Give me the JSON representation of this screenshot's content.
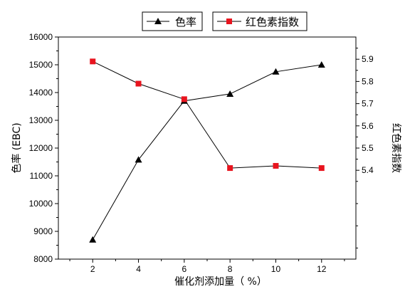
{
  "chart_data": {
    "type": "line",
    "xlabel": "催化剂添加量（ %）",
    "ylabel_left": "色率 (EBC)",
    "ylabel_right": "红色素指数",
    "x": [
      2,
      4,
      6,
      8,
      10,
      12
    ],
    "x_ticks": [
      "2",
      "4",
      "6",
      "8",
      "10",
      "12"
    ],
    "xlim": [
      0.5,
      13.5
    ],
    "ylim_left": [
      8000,
      16000
    ],
    "ylim_right": [
      5.0,
      6.0
    ],
    "left_ticks": [
      "8000",
      "9000",
      "10000",
      "11000",
      "12000",
      "13000",
      "14000",
      "15000",
      "16000"
    ],
    "right_ticks": [
      "5.4",
      "5.5",
      "5.6",
      "5.7",
      "5.8",
      "5.9"
    ],
    "legend_position": "top-center",
    "grid": false,
    "series": [
      {
        "name": "色率",
        "axis": "left",
        "marker": "triangle",
        "color": "#000000",
        "values": [
          8700,
          11580,
          13700,
          13950,
          14750,
          15000
        ]
      },
      {
        "name": "红色素指数",
        "axis": "right",
        "marker": "square",
        "color": "#000000",
        "marker_color": "#e8141e",
        "values": [
          5.89,
          5.79,
          5.72,
          5.41,
          5.42,
          5.41
        ]
      }
    ]
  }
}
